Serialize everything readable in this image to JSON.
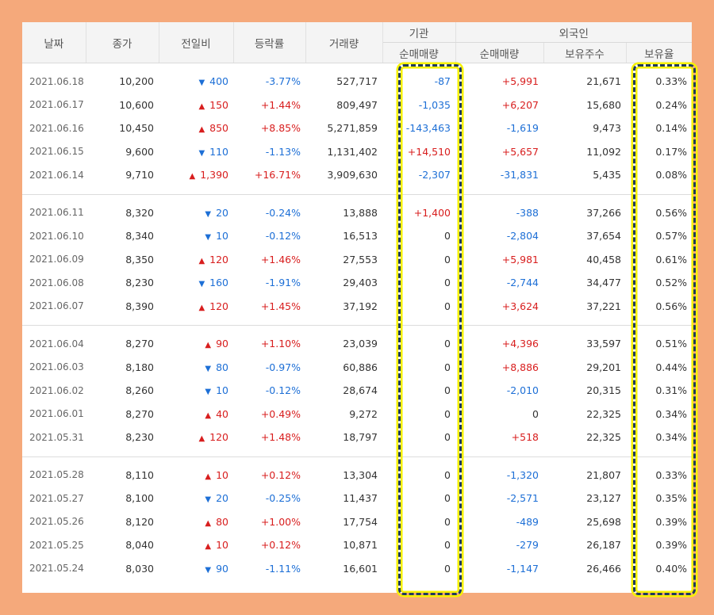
{
  "headers": {
    "date": "날짜",
    "close": "종가",
    "change": "전일비",
    "rate": "등락률",
    "volume": "거래량",
    "institution": "기관",
    "inst_net": "순매매량",
    "foreign": "외국인",
    "for_net": "순매매량",
    "for_hold": "보유주수",
    "for_ratio": "보유율"
  },
  "colors": {
    "up": "#d81e1e",
    "down": "#1d6fd6",
    "background": "#f5a97b",
    "highlight": "#f7f200"
  },
  "groups": [
    [
      {
        "date": "2021.06.18",
        "close": "10,200",
        "dir": "down",
        "change": "400",
        "rate": "-3.77%",
        "volume": "527,717",
        "inst": "-87",
        "foreign": "+5,991",
        "hold": "21,671",
        "ratio": "0.33%"
      },
      {
        "date": "2021.06.17",
        "close": "10,600",
        "dir": "up",
        "change": "150",
        "rate": "+1.44%",
        "volume": "809,497",
        "inst": "-1,035",
        "foreign": "+6,207",
        "hold": "15,680",
        "ratio": "0.24%"
      },
      {
        "date": "2021.06.16",
        "close": "10,450",
        "dir": "up",
        "change": "850",
        "rate": "+8.85%",
        "volume": "5,271,859",
        "inst": "-143,463",
        "foreign": "-1,619",
        "hold": "9,473",
        "ratio": "0.14%"
      },
      {
        "date": "2021.06.15",
        "close": "9,600",
        "dir": "down",
        "change": "110",
        "rate": "-1.13%",
        "volume": "1,131,402",
        "inst": "+14,510",
        "foreign": "+5,657",
        "hold": "11,092",
        "ratio": "0.17%"
      },
      {
        "date": "2021.06.14",
        "close": "9,710",
        "dir": "up",
        "change": "1,390",
        "rate": "+16.71%",
        "volume": "3,909,630",
        "inst": "-2,307",
        "foreign": "-31,831",
        "hold": "5,435",
        "ratio": "0.08%"
      }
    ],
    [
      {
        "date": "2021.06.11",
        "close": "8,320",
        "dir": "down",
        "change": "20",
        "rate": "-0.24%",
        "volume": "13,888",
        "inst": "+1,400",
        "foreign": "-388",
        "hold": "37,266",
        "ratio": "0.56%"
      },
      {
        "date": "2021.06.10",
        "close": "8,340",
        "dir": "down",
        "change": "10",
        "rate": "-0.12%",
        "volume": "16,513",
        "inst": "0",
        "foreign": "-2,804",
        "hold": "37,654",
        "ratio": "0.57%"
      },
      {
        "date": "2021.06.09",
        "close": "8,350",
        "dir": "up",
        "change": "120",
        "rate": "+1.46%",
        "volume": "27,553",
        "inst": "0",
        "foreign": "+5,981",
        "hold": "40,458",
        "ratio": "0.61%"
      },
      {
        "date": "2021.06.08",
        "close": "8,230",
        "dir": "down",
        "change": "160",
        "rate": "-1.91%",
        "volume": "29,403",
        "inst": "0",
        "foreign": "-2,744",
        "hold": "34,477",
        "ratio": "0.52%"
      },
      {
        "date": "2021.06.07",
        "close": "8,390",
        "dir": "up",
        "change": "120",
        "rate": "+1.45%",
        "volume": "37,192",
        "inst": "0",
        "foreign": "+3,624",
        "hold": "37,221",
        "ratio": "0.56%"
      }
    ],
    [
      {
        "date": "2021.06.04",
        "close": "8,270",
        "dir": "up",
        "change": "90",
        "rate": "+1.10%",
        "volume": "23,039",
        "inst": "0",
        "foreign": "+4,396",
        "hold": "33,597",
        "ratio": "0.51%"
      },
      {
        "date": "2021.06.03",
        "close": "8,180",
        "dir": "down",
        "change": "80",
        "rate": "-0.97%",
        "volume": "60,886",
        "inst": "0",
        "foreign": "+8,886",
        "hold": "29,201",
        "ratio": "0.44%"
      },
      {
        "date": "2021.06.02",
        "close": "8,260",
        "dir": "down",
        "change": "10",
        "rate": "-0.12%",
        "volume": "28,674",
        "inst": "0",
        "foreign": "-2,010",
        "hold": "20,315",
        "ratio": "0.31%"
      },
      {
        "date": "2021.06.01",
        "close": "8,270",
        "dir": "up",
        "change": "40",
        "rate": "+0.49%",
        "volume": "9,272",
        "inst": "0",
        "foreign": "0",
        "hold": "22,325",
        "ratio": "0.34%"
      },
      {
        "date": "2021.05.31",
        "close": "8,230",
        "dir": "up",
        "change": "120",
        "rate": "+1.48%",
        "volume": "18,797",
        "inst": "0",
        "foreign": "+518",
        "hold": "22,325",
        "ratio": "0.34%"
      }
    ],
    [
      {
        "date": "2021.05.28",
        "close": "8,110",
        "dir": "up",
        "change": "10",
        "rate": "+0.12%",
        "volume": "13,304",
        "inst": "0",
        "foreign": "-1,320",
        "hold": "21,807",
        "ratio": "0.33%"
      },
      {
        "date": "2021.05.27",
        "close": "8,100",
        "dir": "down",
        "change": "20",
        "rate": "-0.25%",
        "volume": "11,437",
        "inst": "0",
        "foreign": "-2,571",
        "hold": "23,127",
        "ratio": "0.35%"
      },
      {
        "date": "2021.05.26",
        "close": "8,120",
        "dir": "up",
        "change": "80",
        "rate": "+1.00%",
        "volume": "17,754",
        "inst": "0",
        "foreign": "-489",
        "hold": "25,698",
        "ratio": "0.39%"
      },
      {
        "date": "2021.05.25",
        "close": "8,040",
        "dir": "up",
        "change": "10",
        "rate": "+0.12%",
        "volume": "10,871",
        "inst": "0",
        "foreign": "-279",
        "hold": "26,187",
        "ratio": "0.39%"
      },
      {
        "date": "2021.05.24",
        "close": "8,030",
        "dir": "down",
        "change": "90",
        "rate": "-1.11%",
        "volume": "16,601",
        "inst": "0",
        "foreign": "-1,147",
        "hold": "26,466",
        "ratio": "0.40%"
      }
    ]
  ]
}
